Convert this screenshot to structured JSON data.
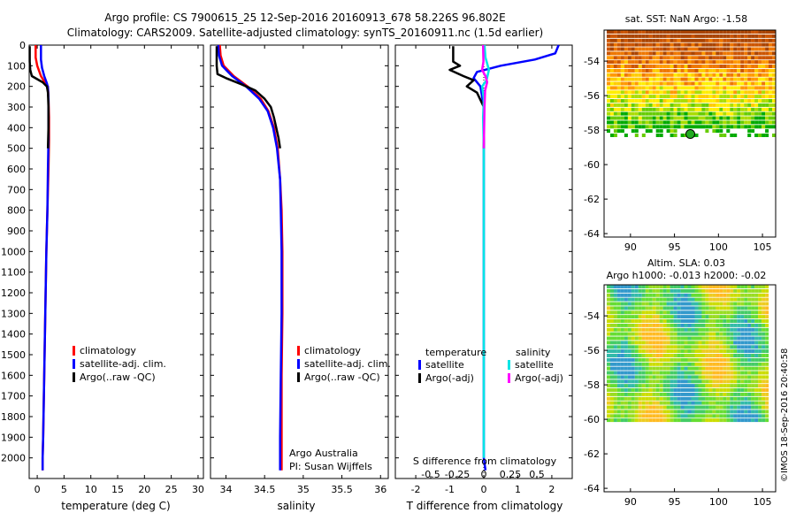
{
  "header": {
    "title_line1": "Argo profile: CS 7900615_25 12-Sep-2016 20160913_678 58.226S 96.802E",
    "title_line2": "Climatology: CARS2009. Satellite-adjusted climatology: synTS_20160911.nc (1.5d earlier)"
  },
  "side_stamp": "©IMOS 18-Sep-2016 20:40:58",
  "chart_data": [
    {
      "id": "temperature",
      "type": "line",
      "xlabel": "temperature (deg C)",
      "ylabel": "",
      "xlim": [
        -1.5,
        31
      ],
      "ylim": [
        2100,
        0
      ],
      "xticks": [
        0,
        5,
        10,
        15,
        20,
        25,
        30
      ],
      "yticks": [
        0,
        100,
        200,
        300,
        400,
        500,
        600,
        700,
        800,
        900,
        1000,
        1100,
        1200,
        1300,
        1400,
        1500,
        1600,
        1700,
        1800,
        1900,
        2000
      ],
      "legend": [
        "climatology",
        "satellite-adj. clim.",
        "Argo(..raw -QC)"
      ],
      "legend_colors": [
        "#ff0000",
        "#0000ff",
        "#000000"
      ],
      "series": [
        {
          "name": "climatology",
          "color": "#ff0000",
          "points": [
            [
              -0.3,
              0
            ],
            [
              -0.3,
              60
            ],
            [
              0.0,
              100
            ],
            [
              0.7,
              150
            ],
            [
              1.4,
              180
            ],
            [
              2.0,
              200
            ],
            [
              2.1,
              260
            ],
            [
              2.2,
              350
            ],
            [
              2.2,
              460
            ],
            [
              2.1,
              600
            ],
            [
              1.9,
              800
            ],
            [
              1.7,
              1000
            ],
            [
              1.5,
              1300
            ],
            [
              1.3,
              1600
            ],
            [
              1.1,
              1900
            ],
            [
              1.0,
              2000
            ],
            [
              1.0,
              2060
            ]
          ]
        },
        {
          "name": "satellite-adj. clim.",
          "color": "#0000ff",
          "points": [
            [
              0.7,
              0
            ],
            [
              0.7,
              70
            ],
            [
              0.9,
              110
            ],
            [
              1.3,
              150
            ],
            [
              1.8,
              185
            ],
            [
              2.0,
              205
            ],
            [
              2.1,
              260
            ],
            [
              2.1,
              350
            ],
            [
              2.1,
              460
            ],
            [
              2.0,
              600
            ],
            [
              1.9,
              800
            ],
            [
              1.7,
              1000
            ],
            [
              1.5,
              1300
            ],
            [
              1.3,
              1600
            ],
            [
              1.1,
              1900
            ],
            [
              1.0,
              2000
            ],
            [
              1.0,
              2060
            ]
          ]
        },
        {
          "name": "Argo(..raw -QC)",
          "color": "#000000",
          "points": [
            [
              -1.4,
              5
            ],
            [
              -1.4,
              80
            ],
            [
              -1.3,
              120
            ],
            [
              -1.0,
              150
            ],
            [
              0.0,
              165
            ],
            [
              1.0,
              180
            ],
            [
              1.8,
              200
            ],
            [
              2.0,
              230
            ],
            [
              2.1,
              300
            ],
            [
              2.1,
              400
            ],
            [
              2.0,
              500
            ]
          ]
        }
      ]
    },
    {
      "id": "salinity",
      "type": "line",
      "xlabel": "salinity",
      "ylabel": "",
      "xlim": [
        33.8,
        36.1
      ],
      "ylim": [
        2100,
        0
      ],
      "xticks": [
        34,
        34.5,
        35,
        35.5,
        36
      ],
      "legend": [
        "climatology",
        "satellite-adj. clim.",
        "Argo(..raw -QC)"
      ],
      "legend_colors": [
        "#ff0000",
        "#0000ff",
        "#000000"
      ],
      "annotation": [
        "Argo Australia",
        "PI: Susan Wijffels"
      ],
      "series": [
        {
          "name": "climatology",
          "color": "#ff0000",
          "points": [
            [
              33.92,
              0
            ],
            [
              33.93,
              50
            ],
            [
              33.97,
              100
            ],
            [
              34.1,
              150
            ],
            [
              34.28,
              200
            ],
            [
              34.45,
              260
            ],
            [
              34.55,
              320
            ],
            [
              34.62,
              400
            ],
            [
              34.67,
              500
            ],
            [
              34.7,
              650
            ],
            [
              34.72,
              800
            ],
            [
              34.73,
              1000
            ],
            [
              34.73,
              1300
            ],
            [
              34.72,
              1600
            ],
            [
              34.72,
              1900
            ],
            [
              34.72,
              2000
            ],
            [
              34.72,
              2060
            ]
          ]
        },
        {
          "name": "satellite-adj. clim.",
          "color": "#0000ff",
          "points": [
            [
              33.9,
              0
            ],
            [
              33.91,
              50
            ],
            [
              33.95,
              100
            ],
            [
              34.08,
              150
            ],
            [
              34.26,
              200
            ],
            [
              34.43,
              260
            ],
            [
              34.54,
              320
            ],
            [
              34.61,
              400
            ],
            [
              34.66,
              500
            ],
            [
              34.7,
              650
            ],
            [
              34.71,
              800
            ],
            [
              34.72,
              1000
            ],
            [
              34.72,
              1300
            ],
            [
              34.71,
              1600
            ],
            [
              34.7,
              1900
            ],
            [
              34.7,
              2000
            ],
            [
              34.7,
              2060
            ]
          ]
        },
        {
          "name": "Argo(..raw -QC)",
          "color": "#000000",
          "points": [
            [
              33.88,
              5
            ],
            [
              33.88,
              100
            ],
            [
              33.89,
              140
            ],
            [
              34.0,
              160
            ],
            [
              34.2,
              190
            ],
            [
              34.38,
              220
            ],
            [
              34.5,
              260
            ],
            [
              34.58,
              300
            ],
            [
              34.62,
              350
            ],
            [
              34.65,
              400
            ],
            [
              34.68,
              450
            ],
            [
              34.7,
              500
            ]
          ]
        }
      ]
    },
    {
      "id": "difference",
      "type": "line",
      "xlabel": "T difference from climatology",
      "top_xlabel": "S difference from climatology",
      "xlim": [
        -2.6,
        2.6
      ],
      "ylim": [
        2100,
        0
      ],
      "xticks": [
        -2,
        -1,
        0,
        1,
        2
      ],
      "top_xticks": [
        "-0.5",
        "-0.25",
        "0",
        "0.25",
        "0.5"
      ],
      "legend_headers": [
        "temperature",
        "salinity"
      ],
      "legend": [
        "satellite",
        "Argo(-adj)",
        "satellite",
        "Argo(-adj)"
      ],
      "legend_colors": [
        "#0000ff",
        "#000000",
        "#00e5e5",
        "#ff00ff"
      ],
      "series": [
        {
          "name": "temperature satellite",
          "color": "#0000ff",
          "points": [
            [
              2.2,
              0
            ],
            [
              2.1,
              40
            ],
            [
              1.5,
              70
            ],
            [
              0.5,
              100
            ],
            [
              -0.2,
              130
            ],
            [
              -0.3,
              160
            ],
            [
              -0.1,
              200
            ],
            [
              -0.05,
              250
            ],
            [
              0,
              300
            ],
            [
              0,
              400
            ],
            [
              0,
              500
            ],
            [
              0,
              700
            ],
            [
              0,
              1000
            ],
            [
              0,
              1300
            ],
            [
              0,
              1600
            ],
            [
              0,
              1900
            ],
            [
              0,
              2000
            ],
            [
              0.05,
              2060
            ]
          ]
        },
        {
          "name": "temperature Argo(-adj)",
          "color": "#000000",
          "points": [
            [
              -0.9,
              5
            ],
            [
              -0.9,
              80
            ],
            [
              -0.7,
              100
            ],
            [
              -1.0,
              120
            ],
            [
              -0.6,
              150
            ],
            [
              -0.3,
              170
            ],
            [
              -0.5,
              200
            ],
            [
              -0.2,
              230
            ],
            [
              0,
              300
            ],
            [
              0,
              400
            ],
            [
              0,
              500
            ]
          ]
        },
        {
          "name": "salinity satellite",
          "color": "#00e5e5",
          "points": [
            [
              0.02,
              0
            ],
            [
              0.05,
              60
            ],
            [
              0.15,
              120
            ],
            [
              0.08,
              170
            ],
            [
              -0.05,
              200
            ],
            [
              0,
              260
            ],
            [
              -0.02,
              350
            ],
            [
              0,
              500
            ],
            [
              0,
              700
            ],
            [
              0,
              1000
            ],
            [
              0,
              1300
            ],
            [
              0,
              1600
            ],
            [
              0,
              1900
            ],
            [
              0,
              2000
            ]
          ]
        },
        {
          "name": "salinity Argo(-adj)",
          "color": "#ff00ff",
          "points": [
            [
              -0.02,
              0
            ],
            [
              -0.01,
              80
            ],
            [
              -0.05,
              120
            ],
            [
              0.05,
              150
            ],
            [
              0.1,
              180
            ],
            [
              0.04,
              220
            ],
            [
              0.02,
              300
            ],
            [
              0.01,
              400
            ],
            [
              0,
              500
            ]
          ]
        }
      ]
    },
    {
      "id": "sst_map",
      "type": "heatmap",
      "title": "sat. SST: NaN Argo: -1.58",
      "xlim": [
        87,
        106.5
      ],
      "ylim": [
        -64.2,
        -52.2
      ],
      "xticks": [
        90,
        95,
        100,
        105
      ],
      "yticks": [
        -54,
        -56,
        -58,
        -60,
        -62,
        -64
      ],
      "ytick_labels": [
        "-54",
        "-56",
        "-58",
        "-60",
        "-62",
        "-64"
      ],
      "argo_position": {
        "lon": 96.8,
        "lat": -58.226
      },
      "palette": [
        "#00aa00",
        "#66cc00",
        "#aadd00",
        "#ffee00",
        "#ffcc00",
        "#ff9900",
        "#ee7700",
        "#cc5500",
        "#aa4400"
      ]
    },
    {
      "id": "sla_map",
      "type": "heatmap",
      "title_line1": "Altim. SLA: 0.03",
      "title_line2": "Argo h1000: -0.013 h2000: -0.02",
      "xlim": [
        87,
        106.5
      ],
      "ylim": [
        -64.2,
        -52.2
      ],
      "xticks": [
        90,
        95,
        100,
        105
      ],
      "yticks": [
        -54,
        -56,
        -58,
        -60,
        -62,
        -64
      ],
      "ytick_labels": [
        "-54",
        "-56",
        "-58",
        "-60",
        "-62",
        "-64"
      ],
      "palette": [
        "#3399cc",
        "#33bbaa",
        "#44cc66",
        "#66dd33",
        "#99dd22",
        "#ccdd00",
        "#eecc22",
        "#ffbb22"
      ]
    }
  ]
}
